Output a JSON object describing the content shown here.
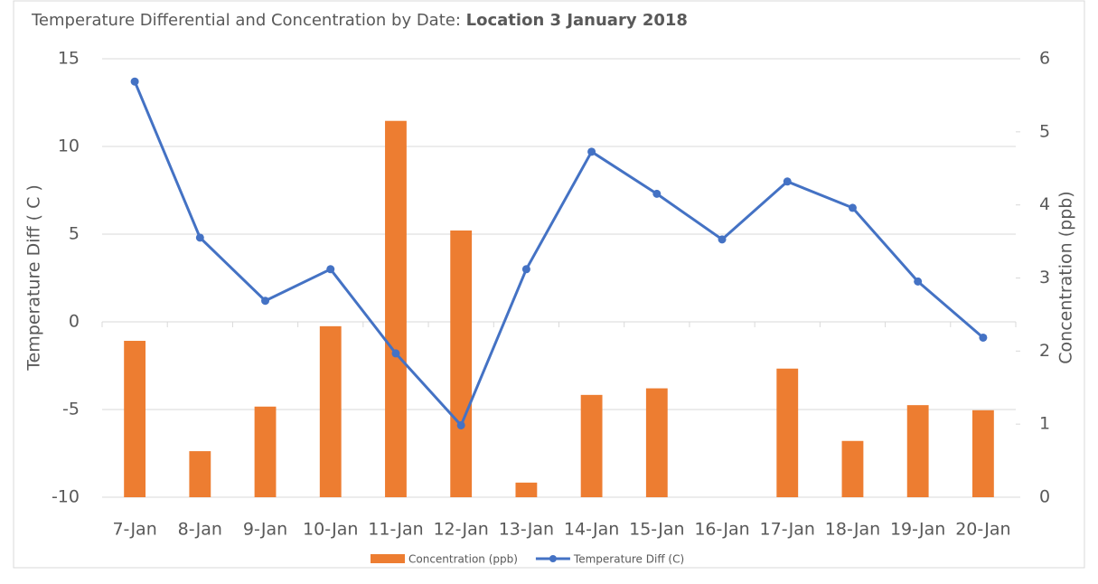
{
  "chart_data": {
    "type": "bar-line",
    "title": "Temperature  Differential and Concentration by Date:",
    "title_emphasis": "Location 3 January 2018",
    "y_label": "Temperature Diff  ( C )",
    "y2_label": "Concentration (ppb)",
    "categories": [
      "7-Jan",
      "8-Jan",
      "9-Jan",
      "10-Jan",
      "11-Jan",
      "12-Jan",
      "13-Jan",
      "14-Jan",
      "15-Jan",
      "16-Jan",
      "17-Jan",
      "18-Jan",
      "19-Jan",
      "20-Jan"
    ],
    "series": [
      {
        "name": "Concentration (ppb)",
        "type": "bar",
        "axis": "y2",
        "color": "#ed7d31",
        "values": [
          2.14,
          0.63,
          1.24,
          2.34,
          5.15,
          3.65,
          0.2,
          1.4,
          1.49,
          null,
          1.76,
          0.77,
          1.26,
          1.19
        ]
      },
      {
        "name": "Temperature Diff (C)",
        "type": "line",
        "color": "#4472c4",
        "values": [
          13.7,
          4.8,
          1.2,
          3.0,
          -1.8,
          -5.9,
          3.0,
          9.7,
          7.3,
          4.7,
          8.0,
          6.5,
          2.3,
          -0.9
        ]
      }
    ],
    "ylim": [
      -10,
      15
    ],
    "yticks": [
      -10,
      -5,
      0,
      5,
      10,
      15
    ],
    "y2lim": [
      0,
      6
    ],
    "y2ticks": [
      0,
      1,
      2,
      3,
      4,
      5,
      6
    ],
    "grid": true
  }
}
